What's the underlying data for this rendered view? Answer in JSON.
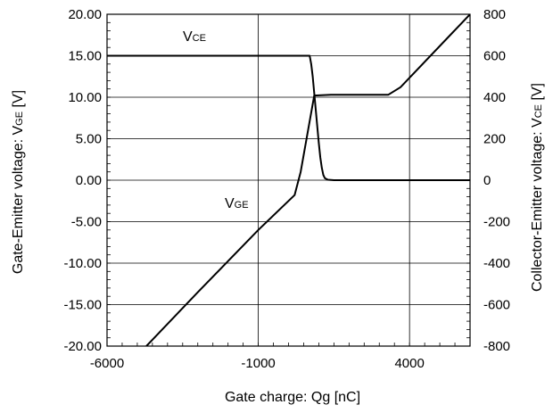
{
  "chart_data": {
    "type": "line",
    "xlabel": "Gate charge: Qg [nC]",
    "ylabel_left": "Gate-Emitter voltage:  V",
    "ylabel_left_sub": "GE",
    "ylabel_left_unit": " [V]",
    "ylabel_right": "Collector-Emitter voltage: V",
    "ylabel_right_sub": "CE",
    "ylabel_right_unit": " [V]",
    "xlim": [
      -6000,
      6000
    ],
    "ylim_left": [
      -20,
      20
    ],
    "ylim_right": [
      -800,
      800
    ],
    "x_ticks": [
      -6000,
      -1000,
      4000
    ],
    "x_tick_labels": [
      "-6000",
      "-1000",
      "4000"
    ],
    "y_left_ticks": [
      20,
      15,
      10,
      5,
      0,
      -5,
      -10,
      -15,
      -20
    ],
    "y_left_tick_labels": [
      "20.00",
      "15.00",
      "10.00",
      "5.00",
      "0.00",
      "-5.00",
      "-10.00",
      "-15.00",
      "-20.00"
    ],
    "y_right_ticks": [
      800,
      600,
      400,
      200,
      0,
      -200,
      -400,
      -600,
      -800
    ],
    "y_right_tick_labels": [
      "800",
      "600",
      "400",
      "200",
      "0",
      "-200",
      "-400",
      "-600",
      "-800"
    ],
    "grid": true,
    "series": [
      {
        "name": "V",
        "name_sub": "GE",
        "axis": "left",
        "color": "#000000",
        "x": [
          -4700,
          -3000,
          -1000,
          200,
          400,
          850,
          1400,
          3300,
          3700,
          6000
        ],
        "y": [
          -20,
          -13.5,
          -6.0,
          -1.8,
          1.0,
          10.2,
          10.3,
          10.3,
          11.2,
          20.0
        ]
      },
      {
        "name": "V",
        "name_sub": "CE",
        "axis": "right",
        "color": "#000000",
        "x": [
          -6000,
          700,
          750,
          800,
          850,
          900,
          950,
          1000,
          1050,
          1100,
          1150,
          1200,
          1300,
          1500,
          2000,
          6000
        ],
        "y": [
          600,
          600,
          560,
          500,
          420,
          340,
          260,
          180,
          110,
          60,
          25,
          10,
          2,
          0,
          0,
          0
        ]
      }
    ],
    "annotations": [
      {
        "text": "V",
        "sub": "CE"
      },
      {
        "text": "V",
        "sub": "GE"
      }
    ]
  }
}
